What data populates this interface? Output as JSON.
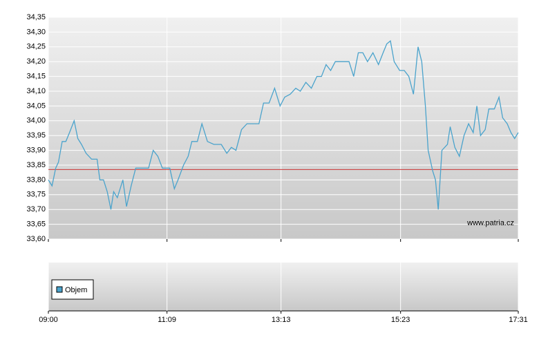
{
  "chart_data": {
    "type": "line",
    "x": [
      "09:00",
      "09:04",
      "09:08",
      "09:11",
      "09:15",
      "09:19",
      "09:23",
      "09:28",
      "09:32",
      "09:36",
      "09:41",
      "09:47",
      "09:53",
      "09:56",
      "10:00",
      "10:04",
      "10:08",
      "10:11",
      "10:15",
      "10:21",
      "10:25",
      "10:30",
      "10:35",
      "10:41",
      "10:49",
      "10:54",
      "10:59",
      "11:04",
      "11:12",
      "11:17",
      "11:21",
      "11:27",
      "11:32",
      "11:36",
      "11:42",
      "11:47",
      "11:53",
      "12:00",
      "12:08",
      "12:14",
      "12:19",
      "12:24",
      "12:30",
      "12:36",
      "12:42",
      "12:49",
      "12:54",
      "13:00",
      "13:06",
      "13:12",
      "13:17",
      "13:23",
      "13:29",
      "13:34",
      "13:40",
      "13:46",
      "13:52",
      "13:57",
      "14:02",
      "14:07",
      "14:12",
      "14:19",
      "14:27",
      "14:32",
      "14:37",
      "14:42",
      "14:47",
      "14:53",
      "14:59",
      "15:04",
      "15:08",
      "15:12",
      "15:16",
      "15:22",
      "15:27",
      "15:32",
      "15:37",
      "15:42",
      "15:46",
      "15:50",
      "15:53",
      "15:58",
      "16:01",
      "16:04",
      "16:08",
      "16:14",
      "16:17",
      "16:22",
      "16:27",
      "16:32",
      "16:37",
      "16:42",
      "16:46",
      "16:50",
      "16:55",
      "16:59",
      "17:05",
      "17:10",
      "17:14",
      "17:19",
      "17:23",
      "17:27",
      "17:31"
    ],
    "values": [
      33.8,
      33.78,
      33.84,
      33.86,
      33.93,
      33.93,
      33.96,
      34.0,
      33.94,
      33.92,
      33.89,
      33.87,
      33.87,
      33.8,
      33.8,
      33.76,
      33.7,
      33.76,
      33.74,
      33.8,
      33.71,
      33.78,
      33.84,
      33.84,
      33.84,
      33.9,
      33.88,
      33.84,
      33.84,
      33.77,
      33.8,
      33.85,
      33.88,
      33.93,
      33.93,
      33.99,
      33.93,
      33.92,
      33.92,
      33.89,
      33.91,
      33.9,
      33.97,
      33.99,
      33.99,
      33.99,
      34.06,
      34.06,
      34.11,
      34.05,
      34.08,
      34.09,
      34.11,
      34.1,
      34.13,
      34.11,
      34.15,
      34.15,
      34.19,
      34.17,
      34.2,
      34.2,
      34.2,
      34.15,
      34.23,
      34.23,
      34.2,
      34.23,
      34.19,
      34.23,
      34.26,
      34.27,
      34.2,
      34.17,
      34.17,
      34.15,
      34.09,
      34.25,
      34.2,
      34.05,
      33.9,
      33.83,
      33.8,
      33.7,
      33.9,
      33.92,
      33.98,
      33.91,
      33.88,
      33.95,
      33.99,
      33.96,
      34.05,
      33.95,
      33.97,
      34.04,
      34.04,
      34.08,
      34.01,
      33.99,
      33.96,
      33.94,
      33.96
    ],
    "color": "#4aa3cc",
    "ylim": [
      33.6,
      34.35
    ],
    "yticks": [
      {
        "value": 33.6,
        "label": "33,60"
      },
      {
        "value": 33.65,
        "label": "33,65"
      },
      {
        "value": 33.7,
        "label": "33,70"
      },
      {
        "value": 33.75,
        "label": "33,75"
      },
      {
        "value": 33.8,
        "label": "33,80"
      },
      {
        "value": 33.85,
        "label": "33,85"
      },
      {
        "value": 33.9,
        "label": "33,90"
      },
      {
        "value": 33.95,
        "label": "33,95"
      },
      {
        "value": 34.0,
        "label": "34,00"
      },
      {
        "value": 34.05,
        "label": "34,05"
      },
      {
        "value": 34.1,
        "label": "34,10"
      },
      {
        "value": 34.15,
        "label": "34,15"
      },
      {
        "value": 34.2,
        "label": "34,20"
      },
      {
        "value": 34.25,
        "label": "34,25"
      },
      {
        "value": 34.3,
        "label": "34,30"
      },
      {
        "value": 34.35,
        "label": "34,35"
      }
    ],
    "xticks": [
      "09:00",
      "11:09",
      "13:13",
      "15:23",
      "17:31"
    ],
    "xlim": [
      "09:00",
      "17:31"
    ],
    "reference_line": 33.835,
    "reference_color": "#cc3333",
    "grid": true,
    "watermark": "www.patria.cz",
    "volume_legend": "Objem",
    "volume_color": "#4aa3cc"
  }
}
